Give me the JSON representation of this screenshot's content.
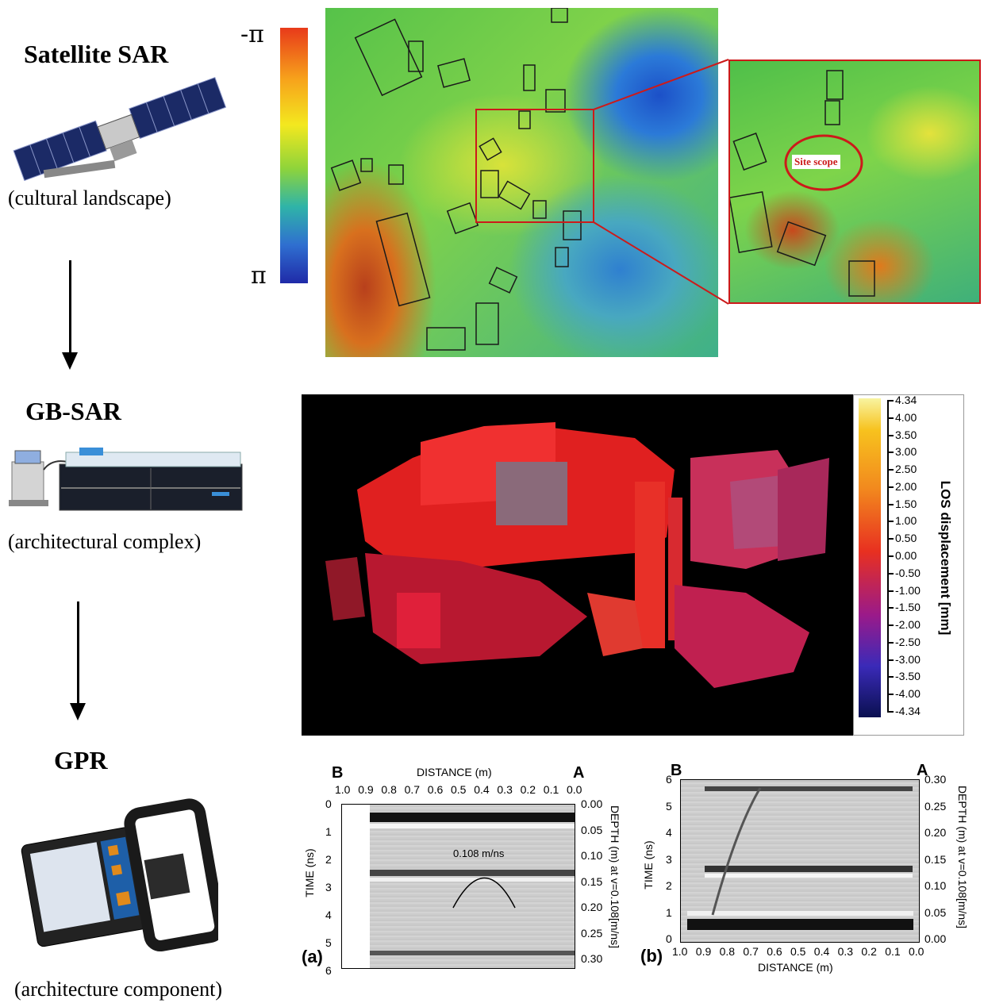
{
  "left": {
    "satellite_title": "Satellite SAR",
    "satellite_caption": "(cultural landscape)",
    "gbsar_title": "GB-SAR",
    "gbsar_caption": "(architectural complex)",
    "gpr_title": "GPR",
    "gpr_caption": "(architecture component)"
  },
  "phase_scale": {
    "top_label": "-π",
    "bottom_label": "π",
    "colors": [
      "#e83a1a",
      "#f7a21b",
      "#f3e81f",
      "#8fd43a",
      "#2fb4a8",
      "#2f6fd0",
      "#1f2aa8"
    ]
  },
  "inset": {
    "site_label": "Site scope",
    "frame_color": "#cc1a1a"
  },
  "gbsar_colorbar": {
    "title": "LOS displacement [mm]",
    "ticks": [
      "4.34",
      "4.00",
      "3.50",
      "3.00",
      "2.50",
      "2.00",
      "1.50",
      "1.00",
      "0.50",
      "0.00",
      "-0.50",
      "-1.00",
      "-1.50",
      "-2.00",
      "-2.50",
      "-3.00",
      "-3.50",
      "-4.00",
      "-4.34"
    ]
  },
  "gpr_a": {
    "panel_label": "(a)",
    "left_letter": "B",
    "right_letter": "A",
    "top_axis_title": "DISTANCE (m)",
    "top_ticks": [
      "1.0",
      "0.9",
      "0.8",
      "0.7",
      "0.6",
      "0.5",
      "0.4",
      "0.3",
      "0.2",
      "0.1",
      "0.0"
    ],
    "left_axis_title": "TIME (ns)",
    "left_ticks": [
      "0",
      "1",
      "2",
      "3",
      "4",
      "5",
      "6"
    ],
    "right_axis_title": "DEPTH (m) at v=0.108[m/ns]",
    "right_ticks": [
      "0.00",
      "0.05",
      "0.10",
      "0.15",
      "0.20",
      "0.25",
      "0.30"
    ],
    "velocity_label": "0.108 m/ns"
  },
  "gpr_b": {
    "panel_label": "(b)",
    "left_letter": "B",
    "right_letter": "A",
    "bottom_axis_title": "DISTANCE (m)",
    "bottom_ticks": [
      "1.0",
      "0.9",
      "0.8",
      "0.7",
      "0.6",
      "0.5",
      "0.4",
      "0.3",
      "0.2",
      "0.1",
      "0.0"
    ],
    "left_axis_title": "TIME (ns)",
    "left_ticks": [
      "0",
      "1",
      "2",
      "3",
      "4",
      "5",
      "6"
    ],
    "right_axis_title": "DEPTH (m) at v=0.108[m/ns]",
    "right_ticks": [
      "0.00",
      "0.05",
      "0.10",
      "0.15",
      "0.20",
      "0.25",
      "0.30"
    ]
  }
}
